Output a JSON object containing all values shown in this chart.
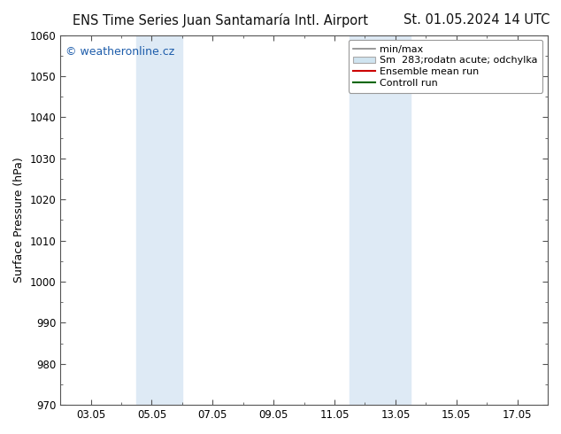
{
  "title_left": "ENS Time Series Juan Santamaría Intl. Airport",
  "title_right": "St. 01.05.2024 14 UTC",
  "ylabel": "Surface Pressure (hPa)",
  "ylim": [
    970,
    1060
  ],
  "yticks": [
    970,
    980,
    990,
    1000,
    1010,
    1020,
    1030,
    1040,
    1050,
    1060
  ],
  "xlim": [
    2,
    18
  ],
  "xtick_labels": [
    "03.05",
    "05.05",
    "07.05",
    "09.05",
    "11.05",
    "13.05",
    "15.05",
    "17.05"
  ],
  "xtick_positions": [
    3,
    5,
    7,
    9,
    11,
    13,
    15,
    17
  ],
  "shade_bands": [
    {
      "xmin": 4.5,
      "xmax": 6.0,
      "color": "#deeaf5"
    },
    {
      "xmin": 11.5,
      "xmax": 12.5,
      "color": "#deeaf5"
    },
    {
      "xmin": 12.5,
      "xmax": 13.5,
      "color": "#deeaf5"
    }
  ],
  "copyright_text": "© weatheronline.cz",
  "copyright_color": "#1e5dab",
  "legend_entries": [
    {
      "label": "min/max",
      "type": "line",
      "color": "#888888",
      "lw": 1.2
    },
    {
      "label": "283;rodatn acute; odchylka",
      "type": "patch",
      "facecolor": "#d0e4f0",
      "edgecolor": "#aaaaaa"
    },
    {
      "label": "Ensemble mean run",
      "type": "line",
      "color": "#cc0000",
      "lw": 1.5
    },
    {
      "label": "Controll run",
      "type": "line",
      "color": "#006600",
      "lw": 1.5
    }
  ],
  "legend_prefix": "Sm  ",
  "bg_color": "#ffffff",
  "spine_color": "#555555",
  "title_fontsize": 10.5,
  "ylabel_fontsize": 9,
  "tick_fontsize": 8.5,
  "legend_fontsize": 8
}
